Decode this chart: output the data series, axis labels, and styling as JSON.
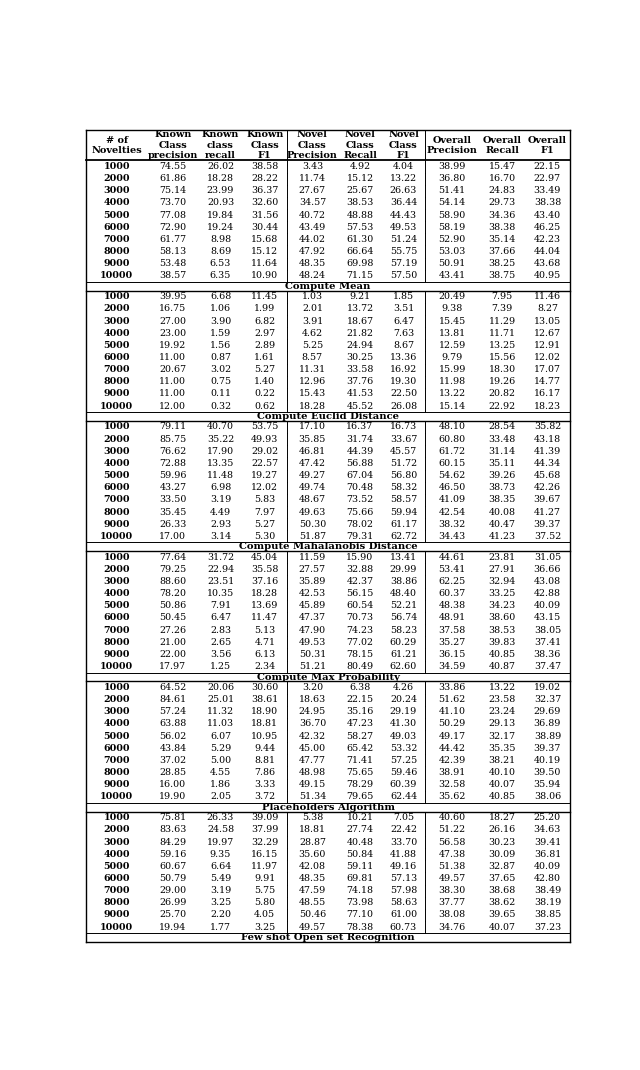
{
  "headers": [
    "# of\nNovelties",
    "Known\nClass\nprecision",
    "Known\nclass\nrecall",
    "Known\nClass\nF1",
    "Novel\nClass\nPrecision",
    "Novel\nClass\nRecall",
    "Novel\nClass\nF1",
    "Overall\nPrecision",
    "Overall\nRecall",
    "Overall\nF1"
  ],
  "sections": [
    {
      "title": null,
      "rows": [
        [
          "1000",
          "74.55",
          "26.02",
          "38.58",
          "3.43",
          "4.92",
          "4.04",
          "38.99",
          "15.47",
          "22.15"
        ],
        [
          "2000",
          "61.86",
          "18.28",
          "28.22",
          "11.74",
          "15.12",
          "13.22",
          "36.80",
          "16.70",
          "22.97"
        ],
        [
          "3000",
          "75.14",
          "23.99",
          "36.37",
          "27.67",
          "25.67",
          "26.63",
          "51.41",
          "24.83",
          "33.49"
        ],
        [
          "4000",
          "73.70",
          "20.93",
          "32.60",
          "34.57",
          "38.53",
          "36.44",
          "54.14",
          "29.73",
          "38.38"
        ],
        [
          "5000",
          "77.08",
          "19.84",
          "31.56",
          "40.72",
          "48.88",
          "44.43",
          "58.90",
          "34.36",
          "43.40"
        ],
        [
          "6000",
          "72.90",
          "19.24",
          "30.44",
          "43.49",
          "57.53",
          "49.53",
          "58.19",
          "38.38",
          "46.25"
        ],
        [
          "7000",
          "61.77",
          "8.98",
          "15.68",
          "44.02",
          "61.30",
          "51.24",
          "52.90",
          "35.14",
          "42.23"
        ],
        [
          "8000",
          "58.13",
          "8.69",
          "15.12",
          "47.92",
          "66.64",
          "55.75",
          "53.03",
          "37.66",
          "44.04"
        ],
        [
          "9000",
          "53.48",
          "6.53",
          "11.64",
          "48.35",
          "69.98",
          "57.19",
          "50.91",
          "38.25",
          "43.68"
        ],
        [
          "10000",
          "38.57",
          "6.35",
          "10.90",
          "48.24",
          "71.15",
          "57.50",
          "43.41",
          "38.75",
          "40.95"
        ]
      ]
    },
    {
      "title": "Compute Mean",
      "rows": [
        [
          "1000",
          "39.95",
          "6.68",
          "11.45",
          "1.03",
          "9.21",
          "1.85",
          "20.49",
          "7.95",
          "11.46"
        ],
        [
          "2000",
          "16.75",
          "1.06",
          "1.99",
          "2.01",
          "13.72",
          "3.51",
          "9.38",
          "7.39",
          "8.27"
        ],
        [
          "3000",
          "27.00",
          "3.90",
          "6.82",
          "3.91",
          "18.67",
          "6.47",
          "15.45",
          "11.29",
          "13.05"
        ],
        [
          "4000",
          "23.00",
          "1.59",
          "2.97",
          "4.62",
          "21.82",
          "7.63",
          "13.81",
          "11.71",
          "12.67"
        ],
        [
          "5000",
          "19.92",
          "1.56",
          "2.89",
          "5.25",
          "24.94",
          "8.67",
          "12.59",
          "13.25",
          "12.91"
        ],
        [
          "6000",
          "11.00",
          "0.87",
          "1.61",
          "8.57",
          "30.25",
          "13.36",
          "9.79",
          "15.56",
          "12.02"
        ],
        [
          "7000",
          "20.67",
          "3.02",
          "5.27",
          "11.31",
          "33.58",
          "16.92",
          "15.99",
          "18.30",
          "17.07"
        ],
        [
          "8000",
          "11.00",
          "0.75",
          "1.40",
          "12.96",
          "37.76",
          "19.30",
          "11.98",
          "19.26",
          "14.77"
        ],
        [
          "9000",
          "11.00",
          "0.11",
          "0.22",
          "15.43",
          "41.53",
          "22.50",
          "13.22",
          "20.82",
          "16.17"
        ],
        [
          "10000",
          "12.00",
          "0.32",
          "0.62",
          "18.28",
          "45.52",
          "26.08",
          "15.14",
          "22.92",
          "18.23"
        ]
      ]
    },
    {
      "title": "Compute Euclid Distance",
      "rows": [
        [
          "1000",
          "79.11",
          "40.70",
          "53.75",
          "17.10",
          "16.37",
          "16.73",
          "48.10",
          "28.54",
          "35.82"
        ],
        [
          "2000",
          "85.75",
          "35.22",
          "49.93",
          "35.85",
          "31.74",
          "33.67",
          "60.80",
          "33.48",
          "43.18"
        ],
        [
          "3000",
          "76.62",
          "17.90",
          "29.02",
          "46.81",
          "44.39",
          "45.57",
          "61.72",
          "31.14",
          "41.39"
        ],
        [
          "4000",
          "72.88",
          "13.35",
          "22.57",
          "47.42",
          "56.88",
          "51.72",
          "60.15",
          "35.11",
          "44.34"
        ],
        [
          "5000",
          "59.96",
          "11.48",
          "19.27",
          "49.27",
          "67.04",
          "56.80",
          "54.62",
          "39.26",
          "45.68"
        ],
        [
          "6000",
          "43.27",
          "6.98",
          "12.02",
          "49.74",
          "70.48",
          "58.32",
          "46.50",
          "38.73",
          "42.26"
        ],
        [
          "7000",
          "33.50",
          "3.19",
          "5.83",
          "48.67",
          "73.52",
          "58.57",
          "41.09",
          "38.35",
          "39.67"
        ],
        [
          "8000",
          "35.45",
          "4.49",
          "7.97",
          "49.63",
          "75.66",
          "59.94",
          "42.54",
          "40.08",
          "41.27"
        ],
        [
          "9000",
          "26.33",
          "2.93",
          "5.27",
          "50.30",
          "78.02",
          "61.17",
          "38.32",
          "40.47",
          "39.37"
        ],
        [
          "10000",
          "17.00",
          "3.14",
          "5.30",
          "51.87",
          "79.31",
          "62.72",
          "34.43",
          "41.23",
          "37.52"
        ]
      ]
    },
    {
      "title": "Compute Mahalanobis Distance",
      "rows": [
        [
          "1000",
          "77.64",
          "31.72",
          "45.04",
          "11.59",
          "15.90",
          "13.41",
          "44.61",
          "23.81",
          "31.05"
        ],
        [
          "2000",
          "79.25",
          "22.94",
          "35.58",
          "27.57",
          "32.88",
          "29.99",
          "53.41",
          "27.91",
          "36.66"
        ],
        [
          "3000",
          "88.60",
          "23.51",
          "37.16",
          "35.89",
          "42.37",
          "38.86",
          "62.25",
          "32.94",
          "43.08"
        ],
        [
          "4000",
          "78.20",
          "10.35",
          "18.28",
          "42.53",
          "56.15",
          "48.40",
          "60.37",
          "33.25",
          "42.88"
        ],
        [
          "5000",
          "50.86",
          "7.91",
          "13.69",
          "45.89",
          "60.54",
          "52.21",
          "48.38",
          "34.23",
          "40.09"
        ],
        [
          "6000",
          "50.45",
          "6.47",
          "11.47",
          "47.37",
          "70.73",
          "56.74",
          "48.91",
          "38.60",
          "43.15"
        ],
        [
          "7000",
          "27.26",
          "2.83",
          "5.13",
          "47.90",
          "74.23",
          "58.23",
          "37.58",
          "38.53",
          "38.05"
        ],
        [
          "8000",
          "21.00",
          "2.65",
          "4.71",
          "49.53",
          "77.02",
          "60.29",
          "35.27",
          "39.83",
          "37.41"
        ],
        [
          "9000",
          "22.00",
          "3.56",
          "6.13",
          "50.31",
          "78.15",
          "61.21",
          "36.15",
          "40.85",
          "38.36"
        ],
        [
          "10000",
          "17.97",
          "1.25",
          "2.34",
          "51.21",
          "80.49",
          "62.60",
          "34.59",
          "40.87",
          "37.47"
        ]
      ]
    },
    {
      "title": "Compute Max Probability",
      "rows": [
        [
          "1000",
          "64.52",
          "20.06",
          "30.60",
          "3.20",
          "6.38",
          "4.26",
          "33.86",
          "13.22",
          "19.02"
        ],
        [
          "2000",
          "84.61",
          "25.01",
          "38.61",
          "18.63",
          "22.15",
          "20.24",
          "51.62",
          "23.58",
          "32.37"
        ],
        [
          "3000",
          "57.24",
          "11.32",
          "18.90",
          "24.95",
          "35.16",
          "29.19",
          "41.10",
          "23.24",
          "29.69"
        ],
        [
          "4000",
          "63.88",
          "11.03",
          "18.81",
          "36.70",
          "47.23",
          "41.30",
          "50.29",
          "29.13",
          "36.89"
        ],
        [
          "5000",
          "56.02",
          "6.07",
          "10.95",
          "42.32",
          "58.27",
          "49.03",
          "49.17",
          "32.17",
          "38.89"
        ],
        [
          "6000",
          "43.84",
          "5.29",
          "9.44",
          "45.00",
          "65.42",
          "53.32",
          "44.42",
          "35.35",
          "39.37"
        ],
        [
          "7000",
          "37.02",
          "5.00",
          "8.81",
          "47.77",
          "71.41",
          "57.25",
          "42.39",
          "38.21",
          "40.19"
        ],
        [
          "8000",
          "28.85",
          "4.55",
          "7.86",
          "48.98",
          "75.65",
          "59.46",
          "38.91",
          "40.10",
          "39.50"
        ],
        [
          "9000",
          "16.00",
          "1.86",
          "3.33",
          "49.15",
          "78.29",
          "60.39",
          "32.58",
          "40.07",
          "35.94"
        ],
        [
          "10000",
          "19.90",
          "2.05",
          "3.72",
          "51.34",
          "79.65",
          "62.44",
          "35.62",
          "40.85",
          "38.06"
        ]
      ]
    },
    {
      "title": "Placeholders Algorithm",
      "rows": [
        [
          "1000",
          "75.81",
          "26.33",
          "39.09",
          "5.38",
          "10.21",
          "7.05",
          "40.60",
          "18.27",
          "25.20"
        ],
        [
          "2000",
          "83.63",
          "24.58",
          "37.99",
          "18.81",
          "27.74",
          "22.42",
          "51.22",
          "26.16",
          "34.63"
        ],
        [
          "3000",
          "84.29",
          "19.97",
          "32.29",
          "28.87",
          "40.48",
          "33.70",
          "56.58",
          "30.23",
          "39.41"
        ],
        [
          "4000",
          "59.16",
          "9.35",
          "16.15",
          "35.60",
          "50.84",
          "41.88",
          "47.38",
          "30.09",
          "36.81"
        ],
        [
          "5000",
          "60.67",
          "6.64",
          "11.97",
          "42.08",
          "59.11",
          "49.16",
          "51.38",
          "32.87",
          "40.09"
        ],
        [
          "6000",
          "50.79",
          "5.49",
          "9.91",
          "48.35",
          "69.81",
          "57.13",
          "49.57",
          "37.65",
          "42.80"
        ],
        [
          "7000",
          "29.00",
          "3.19",
          "5.75",
          "47.59",
          "74.18",
          "57.98",
          "38.30",
          "38.68",
          "38.49"
        ],
        [
          "8000",
          "26.99",
          "3.25",
          "5.80",
          "48.55",
          "73.98",
          "58.63",
          "37.77",
          "38.62",
          "38.19"
        ],
        [
          "9000",
          "25.70",
          "2.20",
          "4.05",
          "50.46",
          "77.10",
          "61.00",
          "38.08",
          "39.65",
          "38.85"
        ],
        [
          "10000",
          "19.94",
          "1.77",
          "3.25",
          "49.57",
          "78.38",
          "60.73",
          "34.76",
          "40.07",
          "37.23"
        ]
      ]
    }
  ],
  "footer_title": "Few shot Open set Recognition",
  "col_proportions": [
    0.118,
    0.098,
    0.085,
    0.085,
    0.098,
    0.085,
    0.082,
    0.105,
    0.087,
    0.087
  ],
  "group_sep_cols": [
    4,
    7
  ],
  "font_size": 6.8,
  "header_font_size": 7.0,
  "title_font_size": 7.2
}
